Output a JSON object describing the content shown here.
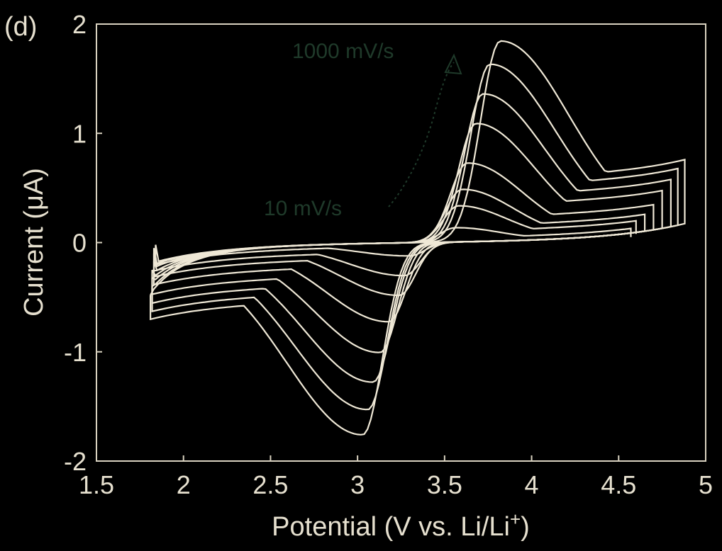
{
  "chart_data": {
    "type": "line",
    "panel_label": "(d)",
    "xlabel": "Potential (V vs. Li/Li",
    "xlabel_sup": "+",
    "ylabel": "Current (μA)",
    "xlim": [
      1.5,
      5
    ],
    "ylim": [
      -2,
      2
    ],
    "xticks": [
      1.5,
      2,
      2.5,
      3,
      3.5,
      4,
      4.5,
      5
    ],
    "xtick_labels": [
      "1.5",
      "2",
      "2.5",
      "3",
      "3.5",
      "4",
      "4.5",
      "5"
    ],
    "yticks": [
      2,
      1,
      0,
      -1,
      -2
    ],
    "ytick_labels": [
      "2",
      "1",
      "0",
      "-1",
      "-2"
    ],
    "grid": false,
    "annotations": [
      "1000 mV/s",
      "10 mV/s"
    ],
    "series": [
      {
        "ipa": 0.13,
        "ipc": -0.12,
        "epa": 3.56,
        "epc": 3.3,
        "xmin": 1.84,
        "xmax": 4.57,
        "start_i": -0.02,
        "end_i": 0.05
      },
      {
        "ipa": 0.33,
        "ipc": -0.3,
        "epa": 3.58,
        "epc": 3.27,
        "xmin": 1.83,
        "xmax": 4.6,
        "start_i": -0.05,
        "end_i": 0.08
      },
      {
        "ipa": 0.48,
        "ipc": -0.48,
        "epa": 3.6,
        "epc": 3.24,
        "xmin": 1.83,
        "xmax": 4.65,
        "start_i": -0.1,
        "end_i": 0.12
      },
      {
        "ipa": 0.72,
        "ipc": -0.72,
        "epa": 3.63,
        "epc": 3.18,
        "xmin": 1.83,
        "xmax": 4.7,
        "start_i": -0.17,
        "end_i": 0.2
      },
      {
        "ipa": 1.08,
        "ipc": -1.0,
        "epa": 3.68,
        "epc": 3.13,
        "xmin": 1.82,
        "xmax": 4.75,
        "start_i": -0.25,
        "end_i": 0.28
      },
      {
        "ipa": 1.35,
        "ipc": -1.27,
        "epa": 3.72,
        "epc": 3.09,
        "xmin": 1.82,
        "xmax": 4.8,
        "start_i": -0.32,
        "end_i": 0.36
      },
      {
        "ipa": 1.62,
        "ipc": -1.52,
        "epa": 3.76,
        "epc": 3.06,
        "xmin": 1.82,
        "xmax": 4.84,
        "start_i": -0.4,
        "end_i": 0.45
      },
      {
        "ipa": 1.83,
        "ipc": -1.75,
        "epa": 3.82,
        "epc": 3.03,
        "xmin": 1.81,
        "xmax": 4.88,
        "start_i": -0.48,
        "end_i": 0.55
      }
    ]
  }
}
